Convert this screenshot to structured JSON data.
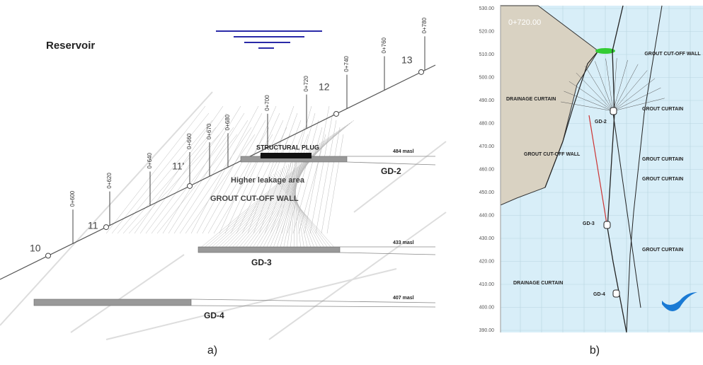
{
  "panel_a": {
    "title": "Reservoir",
    "stations": [
      "0+600",
      "0+620",
      "0+640",
      "0+660",
      "0+670",
      "0+680",
      "0+700",
      "0+720",
      "0+740",
      "0+760",
      "0+780"
    ],
    "points": [
      "10",
      "11",
      "11'",
      "12",
      "13"
    ],
    "structural_plug": "STRUCTURAL PLUG",
    "leakage_area": "Higher leakage area",
    "cut_off_wall": "GROUT CUT-OFF WALL",
    "galleries": [
      {
        "name": "GD-2",
        "level": "484 masl"
      },
      {
        "name": "GD-3",
        "level": "433 masl"
      },
      {
        "name": "GD-4",
        "level": "407 masl"
      }
    ],
    "caption": "a)"
  },
  "panel_b": {
    "elevations": [
      "530.00",
      "520.00",
      "510.00",
      "500.00",
      "490.00",
      "480.00",
      "470.00",
      "460.00",
      "450.00",
      "440.00",
      "430.00",
      "420.00",
      "410.00",
      "400.00",
      "390.00"
    ],
    "section": "0+720.00",
    "labels": {
      "grout_cut_off_wall_top": "GROUT CUT-OFF WALL",
      "drainage_curtain_top": "DRAINAGE CURTAIN",
      "grout_curtain_1": "GROUT CURTAIN",
      "grout_curtain_2": "GROUT CURTAIN",
      "grout_curtain_3": "GROUT CURTAIN",
      "grout_curtain_4": "GROUT CURTAIN",
      "grout_cut_off_wall_left": "GROUT CUT-OFF WALL",
      "drainage_curtain_bottom": "DRAINAGE CURTAIN",
      "gd2": "GD-2",
      "gd3": "GD-3",
      "gd4": "GD-4"
    },
    "caption": "b)"
  }
}
